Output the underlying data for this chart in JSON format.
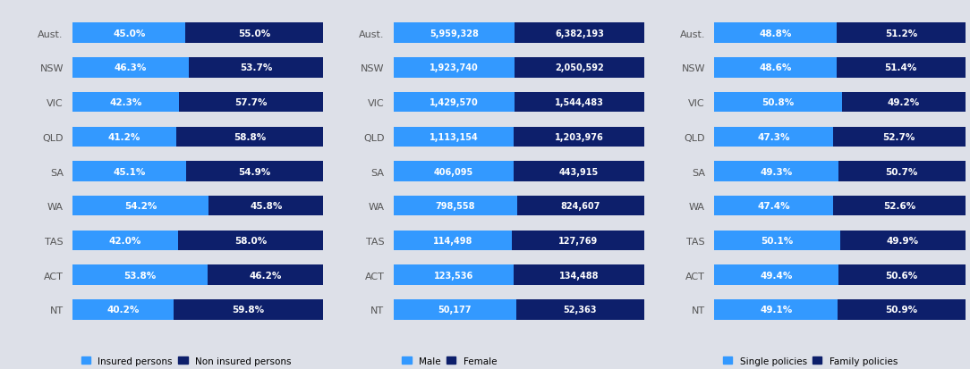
{
  "states": [
    "Aust.",
    "NSW",
    "VIC",
    "QLD",
    "SA",
    "WA",
    "TAS",
    "ACT",
    "NT"
  ],
  "chart1": {
    "insured": [
      45.0,
      46.3,
      42.3,
      41.2,
      45.1,
      54.2,
      42.0,
      53.8,
      40.2
    ],
    "non_insured": [
      55.0,
      53.7,
      57.7,
      58.8,
      54.9,
      45.8,
      58.0,
      46.2,
      59.8
    ],
    "color_insured": "#3399ff",
    "color_non_insured": "#0d1f6b",
    "legend1": "Insured persons",
    "legend2": "Non insured persons"
  },
  "chart2": {
    "male": [
      5959328,
      1923740,
      1429570,
      1113154,
      406095,
      798558,
      114498,
      123536,
      50177
    ],
    "female": [
      6382193,
      2050592,
      1544483,
      1203976,
      443915,
      824607,
      127769,
      134488,
      52363
    ],
    "male_labels": [
      "5,959,328",
      "1,923,740",
      "1,429,570",
      "1,113,154",
      "406,095",
      "798,558",
      "114,498",
      "123,536",
      "50,177"
    ],
    "female_labels": [
      "6,382,193",
      "2,050,592",
      "1,544,483",
      "1,203,976",
      "443,915",
      "824,607",
      "127,769",
      "134,488",
      "52,363"
    ],
    "color_male": "#3399ff",
    "color_female": "#0d1f6b",
    "legend1": "Male",
    "legend2": "Female"
  },
  "chart3": {
    "single": [
      48.8,
      48.6,
      50.8,
      47.3,
      49.3,
      47.4,
      50.1,
      49.4,
      49.1
    ],
    "family": [
      51.2,
      51.4,
      49.2,
      52.7,
      50.7,
      52.6,
      49.9,
      50.6,
      50.9
    ],
    "color_single": "#3399ff",
    "color_family": "#0d1f6b",
    "legend1": "Single policies",
    "legend2": "Family policies"
  },
  "bg_color": "#dde0e8",
  "text_color_white": "#ffffff",
  "label_fontsize": 7.5,
  "state_fontsize": 8,
  "legend_fontsize": 7.5
}
